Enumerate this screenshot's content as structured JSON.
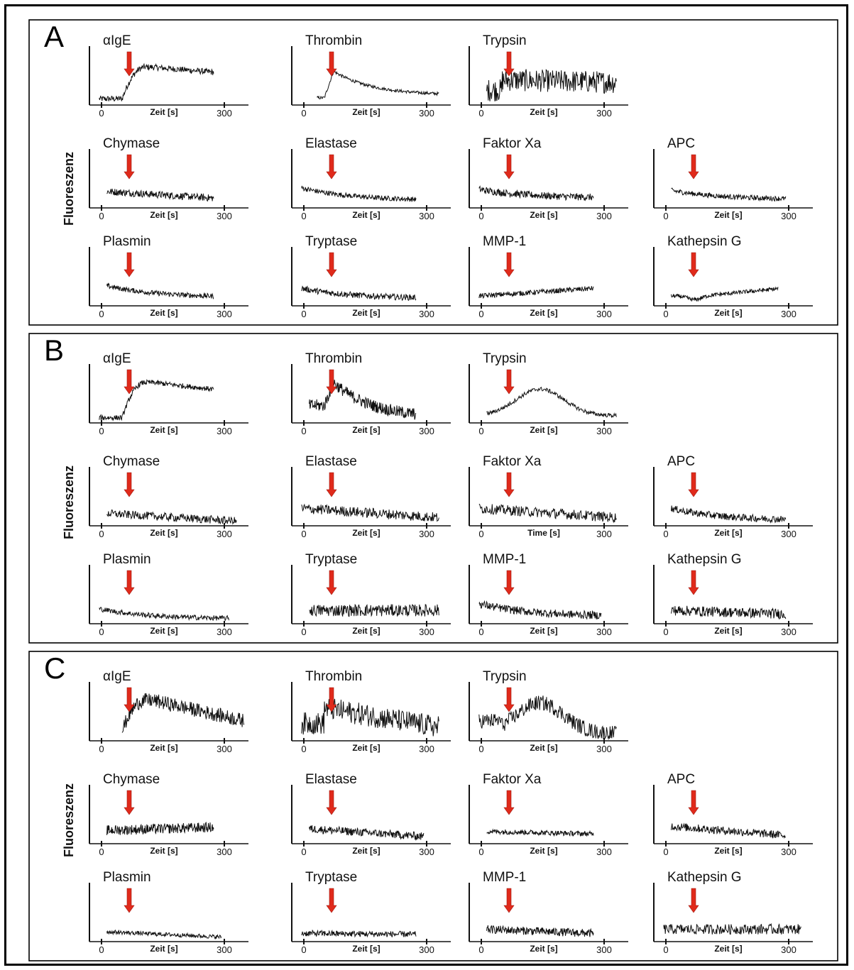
{
  "figure": {
    "x_tick_labels": [
      "0",
      "300"
    ],
    "arrow_color": "#e02a1b",
    "trace_color": "#111111",
    "panels": [
      {
        "label": "A",
        "y_label": "Fluoreszenz",
        "rows": [
          {
            "charts": [
              {
                "title": "αIgE",
                "x_label": "Zeit [s]",
                "trace": {
                  "type": "rise",
                  "pre": 0.08,
                  "plateau": 0.7,
                  "end": 0.55,
                  "noise": 0.06,
                  "span": [
                    0.05,
                    0.8
                  ]
                }
              },
              {
                "title": "Thrombin",
                "x_label": "Zeit [s]",
                "trace": {
                  "type": "spike",
                  "pre": 0.1,
                  "peak": 0.62,
                  "end": 0.15,
                  "noise": 0.03,
                  "span": [
                    0.15,
                    0.95
                  ]
                }
              },
              {
                "title": "Trypsin",
                "x_label": "Zeit [s]",
                "trace": {
                  "type": "noisy",
                  "pre": 0.25,
                  "plateau": 0.45,
                  "end": 0.4,
                  "noise": 0.22,
                  "span": [
                    0.1,
                    0.95
                  ]
                }
              }
            ]
          },
          {
            "charts": [
              {
                "title": "Chymase",
                "x_label": "Zeit [s]",
                "trace": {
                  "type": "flat",
                  "pre": 0.28,
                  "end": 0.15,
                  "noise": 0.07,
                  "span": [
                    0.1,
                    0.8
                  ]
                }
              },
              {
                "title": "Elastase",
                "x_label": "Zeit [s]",
                "trace": {
                  "type": "decay",
                  "pre": 0.35,
                  "end": 0.1,
                  "noise": 0.05,
                  "span": [
                    0.05,
                    0.8
                  ]
                }
              },
              {
                "title": "Faktor Xa",
                "x_label": "Zeit [s]",
                "trace": {
                  "type": "decay",
                  "pre": 0.32,
                  "end": 0.15,
                  "noise": 0.07,
                  "span": [
                    0.05,
                    0.8
                  ]
                }
              },
              {
                "title": "APC",
                "x_label": "Zeit [s]",
                "trace": {
                  "type": "decay",
                  "pre": 0.3,
                  "end": 0.12,
                  "noise": 0.05,
                  "span": [
                    0.1,
                    0.85
                  ]
                }
              }
            ]
          },
          {
            "charts": [
              {
                "title": "Plasmin",
                "x_label": "Zeit [s]",
                "trace": {
                  "type": "decay",
                  "pre": 0.35,
                  "end": 0.12,
                  "noise": 0.05,
                  "span": [
                    0.1,
                    0.8
                  ]
                }
              },
              {
                "title": "Tryptase",
                "x_label": "Zeit [s]",
                "trace": {
                  "type": "decay",
                  "pre": 0.3,
                  "end": 0.1,
                  "noise": 0.06,
                  "span": [
                    0.05,
                    0.8
                  ]
                }
              },
              {
                "title": "MMP-1",
                "x_label": "Zeit [s]",
                "trace": {
                  "type": "flat",
                  "pre": 0.15,
                  "end": 0.3,
                  "noise": 0.05,
                  "span": [
                    0.05,
                    0.8
                  ]
                }
              },
              {
                "title": "Kathepsin G",
                "x_label": "Zeit [s]",
                "trace": {
                  "type": "dip",
                  "pre": 0.15,
                  "end": 0.35,
                  "noise": 0.04,
                  "span": [
                    0.1,
                    0.8
                  ]
                }
              }
            ]
          }
        ]
      },
      {
        "label": "B",
        "y_label": "Fluoreszenz",
        "rows": [
          {
            "charts": [
              {
                "title": "αIgE",
                "x_label": "Zeit [s]",
                "trace": {
                  "type": "rise",
                  "pre": 0.06,
                  "plateau": 0.75,
                  "end": 0.55,
                  "noise": 0.05,
                  "span": [
                    0.05,
                    0.8
                  ]
                }
              },
              {
                "title": "Thrombin",
                "x_label": "Zeit [s]",
                "trace": {
                  "type": "spike",
                  "pre": 0.3,
                  "peak": 0.75,
                  "end": 0.05,
                  "noise": 0.12,
                  "span": [
                    0.1,
                    0.8
                  ]
                }
              },
              {
                "title": "Trypsin",
                "x_label": "Zeit [s]",
                "trace": {
                  "type": "hump",
                  "pre": 0.05,
                  "peak": 0.62,
                  "end": 0.1,
                  "noise": 0.04,
                  "span": [
                    0.1,
                    0.95
                  ]
                }
              }
            ]
          },
          {
            "charts": [
              {
                "title": "Chymase",
                "x_label": "Zeit [s]",
                "trace": {
                  "type": "flat",
                  "pre": 0.2,
                  "end": 0.05,
                  "noise": 0.08,
                  "span": [
                    0.1,
                    0.95
                  ]
                }
              },
              {
                "title": "Elastase",
                "x_label": "Zeit [s]",
                "trace": {
                  "type": "flat",
                  "pre": 0.3,
                  "end": 0.12,
                  "noise": 0.1,
                  "span": [
                    0.05,
                    0.95
                  ]
                }
              },
              {
                "title": "Faktor Xa",
                "x_label": "Time [s]",
                "trace": {
                  "type": "flat",
                  "pre": 0.3,
                  "end": 0.12,
                  "noise": 0.1,
                  "span": [
                    0.05,
                    0.95
                  ]
                }
              },
              {
                "title": "APC",
                "x_label": "Zeit [s]",
                "trace": {
                  "type": "decay",
                  "pre": 0.3,
                  "end": 0.06,
                  "noise": 0.07,
                  "span": [
                    0.1,
                    0.85
                  ]
                }
              }
            ]
          },
          {
            "charts": [
              {
                "title": "Plasmin",
                "x_label": "Zeit [s]",
                "trace": {
                  "type": "decay",
                  "pre": 0.25,
                  "end": 0.05,
                  "noise": 0.05,
                  "span": [
                    0.05,
                    0.9
                  ]
                }
              },
              {
                "title": "Tryptase",
                "x_label": "Zeit [s]",
                "trace": {
                  "type": "flat",
                  "pre": 0.22,
                  "end": 0.22,
                  "noise": 0.12,
                  "span": [
                    0.1,
                    0.95
                  ]
                }
              },
              {
                "title": "MMP-1",
                "x_label": "Zeit [s]",
                "trace": {
                  "type": "decay",
                  "pre": 0.35,
                  "end": 0.1,
                  "noise": 0.08,
                  "span": [
                    0.05,
                    0.85
                  ]
                }
              },
              {
                "title": "Kathepsin G",
                "x_label": "Zeit [s]",
                "trace": {
                  "type": "flat",
                  "pre": 0.22,
                  "end": 0.15,
                  "noise": 0.1,
                  "span": [
                    0.1,
                    0.85
                  ]
                }
              }
            ]
          }
        ]
      },
      {
        "label": "C",
        "y_label": "Fluoreszenz",
        "rows": [
          {
            "charts": [
              {
                "title": "αIgE",
                "x_label": "Zeit [s]",
                "trace": {
                  "type": "rise",
                  "pre": 0.15,
                  "plateau": 0.75,
                  "end": 0.35,
                  "noise": 0.14,
                  "span": [
                    0.2,
                    1.0
                  ]
                }
              },
              {
                "title": "Thrombin",
                "x_label": "Zeit [s]",
                "trace": {
                  "type": "noisy",
                  "pre": 0.3,
                  "plateau": 0.6,
                  "end": 0.2,
                  "noise": 0.22,
                  "span": [
                    0.05,
                    0.95
                  ]
                }
              },
              {
                "title": "Trypsin",
                "x_label": "Zeit [s]",
                "trace": {
                  "type": "hump",
                  "pre": 0.35,
                  "peak": 0.7,
                  "end": 0.1,
                  "noise": 0.15,
                  "span": [
                    0.05,
                    0.95
                  ]
                }
              }
            ]
          },
          {
            "charts": [
              {
                "title": "Chymase",
                "x_label": "Zeit [s]",
                "trace": {
                  "type": "flat",
                  "pre": 0.22,
                  "end": 0.28,
                  "noise": 0.1,
                  "span": [
                    0.1,
                    0.8
                  ]
                }
              },
              {
                "title": "Elastase",
                "x_label": "Zeit [s]",
                "trace": {
                  "type": "flat",
                  "pre": 0.25,
                  "end": 0.1,
                  "noise": 0.08,
                  "span": [
                    0.1,
                    0.85
                  ]
                }
              },
              {
                "title": "Faktor Xa",
                "x_label": "Zeit [s]",
                "trace": {
                  "type": "flat",
                  "pre": 0.2,
                  "end": 0.15,
                  "noise": 0.05,
                  "span": [
                    0.1,
                    0.8
                  ]
                }
              },
              {
                "title": "APC",
                "x_label": "Zeit [s]",
                "trace": {
                  "type": "flat",
                  "pre": 0.3,
                  "end": 0.12,
                  "noise": 0.08,
                  "span": [
                    0.1,
                    0.85
                  ]
                }
              }
            ]
          },
          {
            "charts": [
              {
                "title": "Plasmin",
                "x_label": "Zeit [s]",
                "trace": {
                  "type": "flat",
                  "pre": 0.15,
                  "end": 0.05,
                  "noise": 0.04,
                  "span": [
                    0.1,
                    0.85
                  ]
                }
              },
              {
                "title": "Tryptase",
                "x_label": "Zeit [s]",
                "trace": {
                  "type": "flat",
                  "pre": 0.12,
                  "end": 0.1,
                  "noise": 0.06,
                  "span": [
                    0.05,
                    0.8
                  ]
                }
              },
              {
                "title": "MMP-1",
                "x_label": "Zeit [s]",
                "trace": {
                  "type": "flat",
                  "pre": 0.2,
                  "end": 0.12,
                  "noise": 0.08,
                  "span": [
                    0.1,
                    0.8
                  ]
                }
              },
              {
                "title": "Kathepsin G",
                "x_label": "Zeit [s]",
                "trace": {
                  "type": "flat",
                  "pre": 0.2,
                  "end": 0.2,
                  "noise": 0.1,
                  "span": [
                    0.05,
                    0.95
                  ]
                }
              }
            ]
          }
        ]
      }
    ]
  }
}
